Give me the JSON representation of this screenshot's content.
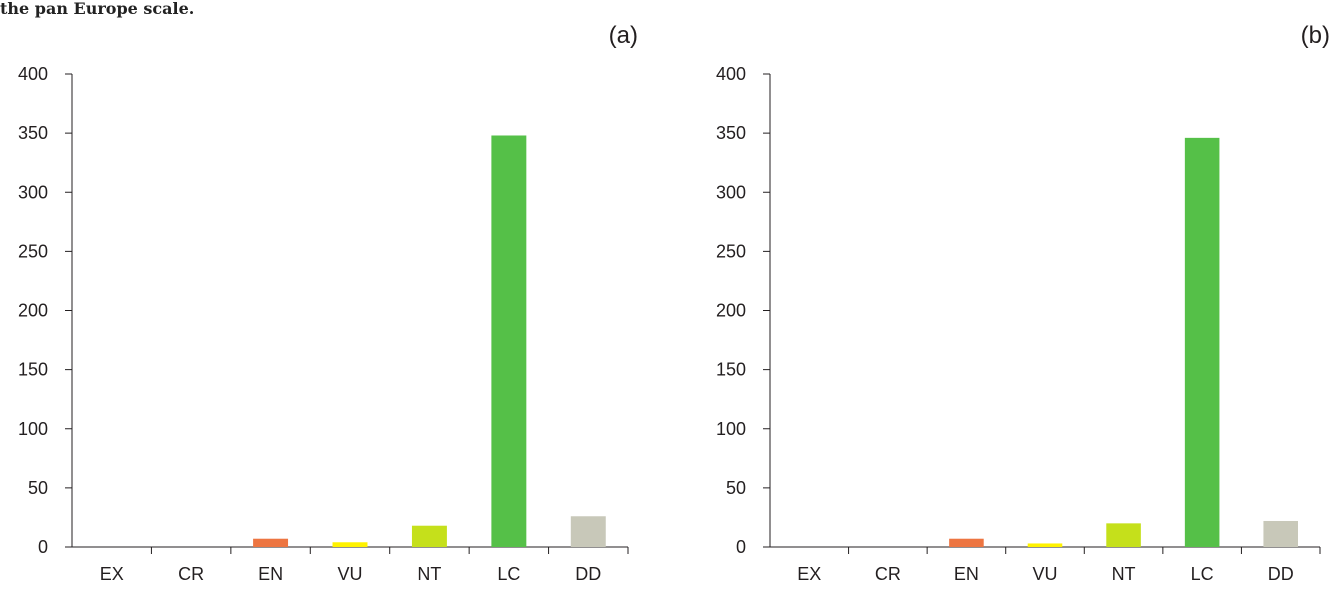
{
  "caption": "the pan Europe  scale.",
  "colors": {
    "EX": "#ffffff",
    "CR": "#ffffff",
    "EN": "#ed7541",
    "VU": "#fff200",
    "NT": "#c5e01b",
    "LC": "#55c048",
    "DD": "#c8c8b9"
  },
  "chart_data": [
    {
      "type": "bar",
      "panel_label": "(a)",
      "categories": [
        "EX",
        "CR",
        "EN",
        "VU",
        "NT",
        "LC",
        "DD"
      ],
      "values": [
        0,
        0,
        7,
        4,
        18,
        348,
        26
      ],
      "yticks": [
        "0",
        "50",
        "100",
        "150",
        "200",
        "250",
        "300",
        "350",
        "400"
      ],
      "ylim": [
        0,
        400
      ],
      "grid": false,
      "legend": "none"
    },
    {
      "type": "bar",
      "panel_label": "(b)",
      "categories": [
        "EX",
        "CR",
        "EN",
        "VU",
        "NT",
        "LC",
        "DD"
      ],
      "values": [
        0,
        0,
        7,
        3,
        20,
        346,
        22
      ],
      "yticks": [
        "0",
        "50",
        "100",
        "150",
        "200",
        "250",
        "300",
        "350",
        "400"
      ],
      "ylim": [
        0,
        400
      ],
      "grid": false,
      "legend": "none"
    }
  ]
}
